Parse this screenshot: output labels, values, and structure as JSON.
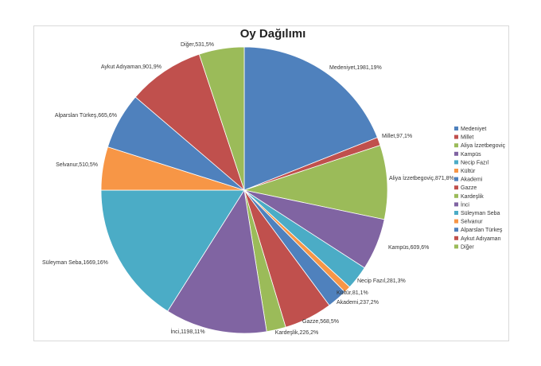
{
  "chart_data": {
    "type": "pie",
    "title": "Oy Dağılımı",
    "slices": [
      {
        "name": "Medeniyet",
        "value": 1981,
        "label": "Medeniyet,1981,19%",
        "color": "#4f81bd"
      },
      {
        "name": "Millet",
        "value": 97,
        "label": "Millet,97,1%",
        "color": "#c0504d"
      },
      {
        "name": "Aliya İzzetbegoviç",
        "value": 871,
        "label": "Aliya İzzetbegoviç,871,8%",
        "color": "#9bbb59"
      },
      {
        "name": "Kampüs",
        "value": 609,
        "label": "Kampüs,609,6%",
        "color": "#8064a2"
      },
      {
        "name": "Necip Fazıl",
        "value": 281,
        "label": "Necip Fazıl,281,3%",
        "color": "#4bacc6"
      },
      {
        "name": "Kültür",
        "value": 81,
        "label": "Kültür,81,1%",
        "color": "#f79646"
      },
      {
        "name": "Akademi",
        "value": 237,
        "label": "Akademi,237,2%",
        "color": "#4f81bd"
      },
      {
        "name": "Gazze",
        "value": 568,
        "label": "Gazze,568,5%",
        "color": "#c0504d"
      },
      {
        "name": "Kardeşlik",
        "value": 226,
        "label": "Kardeşlik,226,2%",
        "color": "#9bbb59"
      },
      {
        "name": "İnci",
        "value": 1198,
        "label": "İnci,1198,11%",
        "color": "#8064a2"
      },
      {
        "name": "Süleyman Seba",
        "value": 1669,
        "label": "Süleyman Seba,1669,16%",
        "color": "#4bacc6"
      },
      {
        "name": "Selvanur",
        "value": 510,
        "label": "Selvanur,510,5%",
        "color": "#f79646"
      },
      {
        "name": "Alparslan Türkeş",
        "value": 665,
        "label": "Alparslan Türkeş,665,6%",
        "color": "#4f81bd"
      },
      {
        "name": "Aykut Adıyaman",
        "value": 901,
        "label": "Aykut Adıyaman,901,9%",
        "color": "#c0504d"
      },
      {
        "name": "Diğer",
        "value": 531,
        "label": "Diğer,531,5%",
        "color": "#9bbb59"
      }
    ],
    "legend_position": "right",
    "start_angle_deg": 0,
    "direction": "clockwise"
  }
}
